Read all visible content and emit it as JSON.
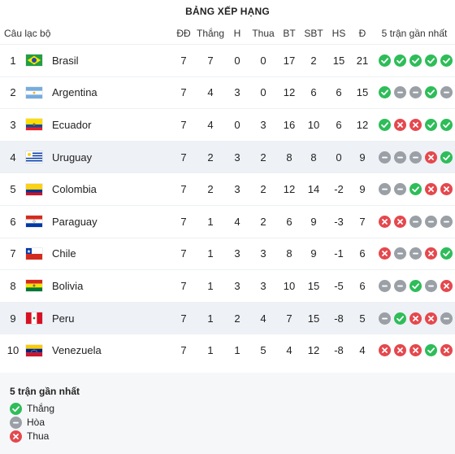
{
  "title": "BẢNG XẾP HẠNG",
  "headers": {
    "club": "Câu lạc bộ",
    "played": "ĐĐ",
    "won": "Thắng",
    "draw": "H",
    "lost": "Thua",
    "gf": "BT",
    "ga": "SBT",
    "gd": "HS",
    "pts": "Đ",
    "form": "5 trận gần nhất"
  },
  "teams": [
    {
      "rank": "1",
      "name": "Brasil",
      "flag": "brazil-flag",
      "played": "7",
      "won": "7",
      "draw": "0",
      "lost": "0",
      "gf": "17",
      "ga": "2",
      "gd": "15",
      "pts": "21",
      "form": [
        "W",
        "W",
        "W",
        "W",
        "W"
      ]
    },
    {
      "rank": "2",
      "name": "Argentina",
      "flag": "argentina-flag",
      "played": "7",
      "won": "4",
      "draw": "3",
      "lost": "0",
      "gf": "12",
      "ga": "6",
      "gd": "6",
      "pts": "15",
      "form": [
        "W",
        "D",
        "D",
        "W",
        "D"
      ]
    },
    {
      "rank": "3",
      "name": "Ecuador",
      "flag": "ecuador-flag",
      "played": "7",
      "won": "4",
      "draw": "0",
      "lost": "3",
      "gf": "16",
      "ga": "10",
      "gd": "6",
      "pts": "12",
      "form": [
        "W",
        "L",
        "L",
        "W",
        "W"
      ]
    },
    {
      "rank": "4",
      "name": "Uruguay",
      "flag": "uruguay-flag",
      "played": "7",
      "won": "2",
      "draw": "3",
      "lost": "2",
      "gf": "8",
      "ga": "8",
      "gd": "0",
      "pts": "9",
      "form": [
        "D",
        "D",
        "D",
        "L",
        "W"
      ]
    },
    {
      "rank": "5",
      "name": "Colombia",
      "flag": "colombia-flag",
      "played": "7",
      "won": "2",
      "draw": "3",
      "lost": "2",
      "gf": "12",
      "ga": "14",
      "gd": "-2",
      "pts": "9",
      "form": [
        "D",
        "D",
        "W",
        "L",
        "L"
      ]
    },
    {
      "rank": "6",
      "name": "Paraguay",
      "flag": "paraguay-flag",
      "played": "7",
      "won": "1",
      "draw": "4",
      "lost": "2",
      "gf": "6",
      "ga": "9",
      "gd": "-3",
      "pts": "7",
      "form": [
        "L",
        "L",
        "D",
        "D",
        "D"
      ]
    },
    {
      "rank": "7",
      "name": "Chile",
      "flag": "chile-flag",
      "played": "7",
      "won": "1",
      "draw": "3",
      "lost": "3",
      "gf": "8",
      "ga": "9",
      "gd": "-1",
      "pts": "6",
      "form": [
        "L",
        "D",
        "D",
        "L",
        "W"
      ]
    },
    {
      "rank": "8",
      "name": "Bolivia",
      "flag": "bolivia-flag",
      "played": "7",
      "won": "1",
      "draw": "3",
      "lost": "3",
      "gf": "10",
      "ga": "15",
      "gd": "-5",
      "pts": "6",
      "form": [
        "D",
        "D",
        "W",
        "D",
        "L"
      ]
    },
    {
      "rank": "9",
      "name": "Peru",
      "flag": "peru-flag",
      "played": "7",
      "won": "1",
      "draw": "2",
      "lost": "4",
      "gf": "7",
      "ga": "15",
      "gd": "-8",
      "pts": "5",
      "form": [
        "D",
        "W",
        "L",
        "L",
        "D"
      ]
    },
    {
      "rank": "10",
      "name": "Venezuela",
      "flag": "venezuela-flag",
      "played": "7",
      "won": "1",
      "draw": "1",
      "lost": "5",
      "gf": "4",
      "ga": "12",
      "gd": "-8",
      "pts": "4",
      "form": [
        "L",
        "L",
        "L",
        "W",
        "L"
      ]
    }
  ],
  "highlighted": [
    4,
    9
  ],
  "legend": {
    "title": "5 trận gần nhất",
    "win": "Thắng",
    "draw": "Hòa",
    "loss": "Thua"
  },
  "colors": {
    "win": "#2ebd59",
    "draw": "#9aa0a6",
    "loss": "#e5484d"
  }
}
